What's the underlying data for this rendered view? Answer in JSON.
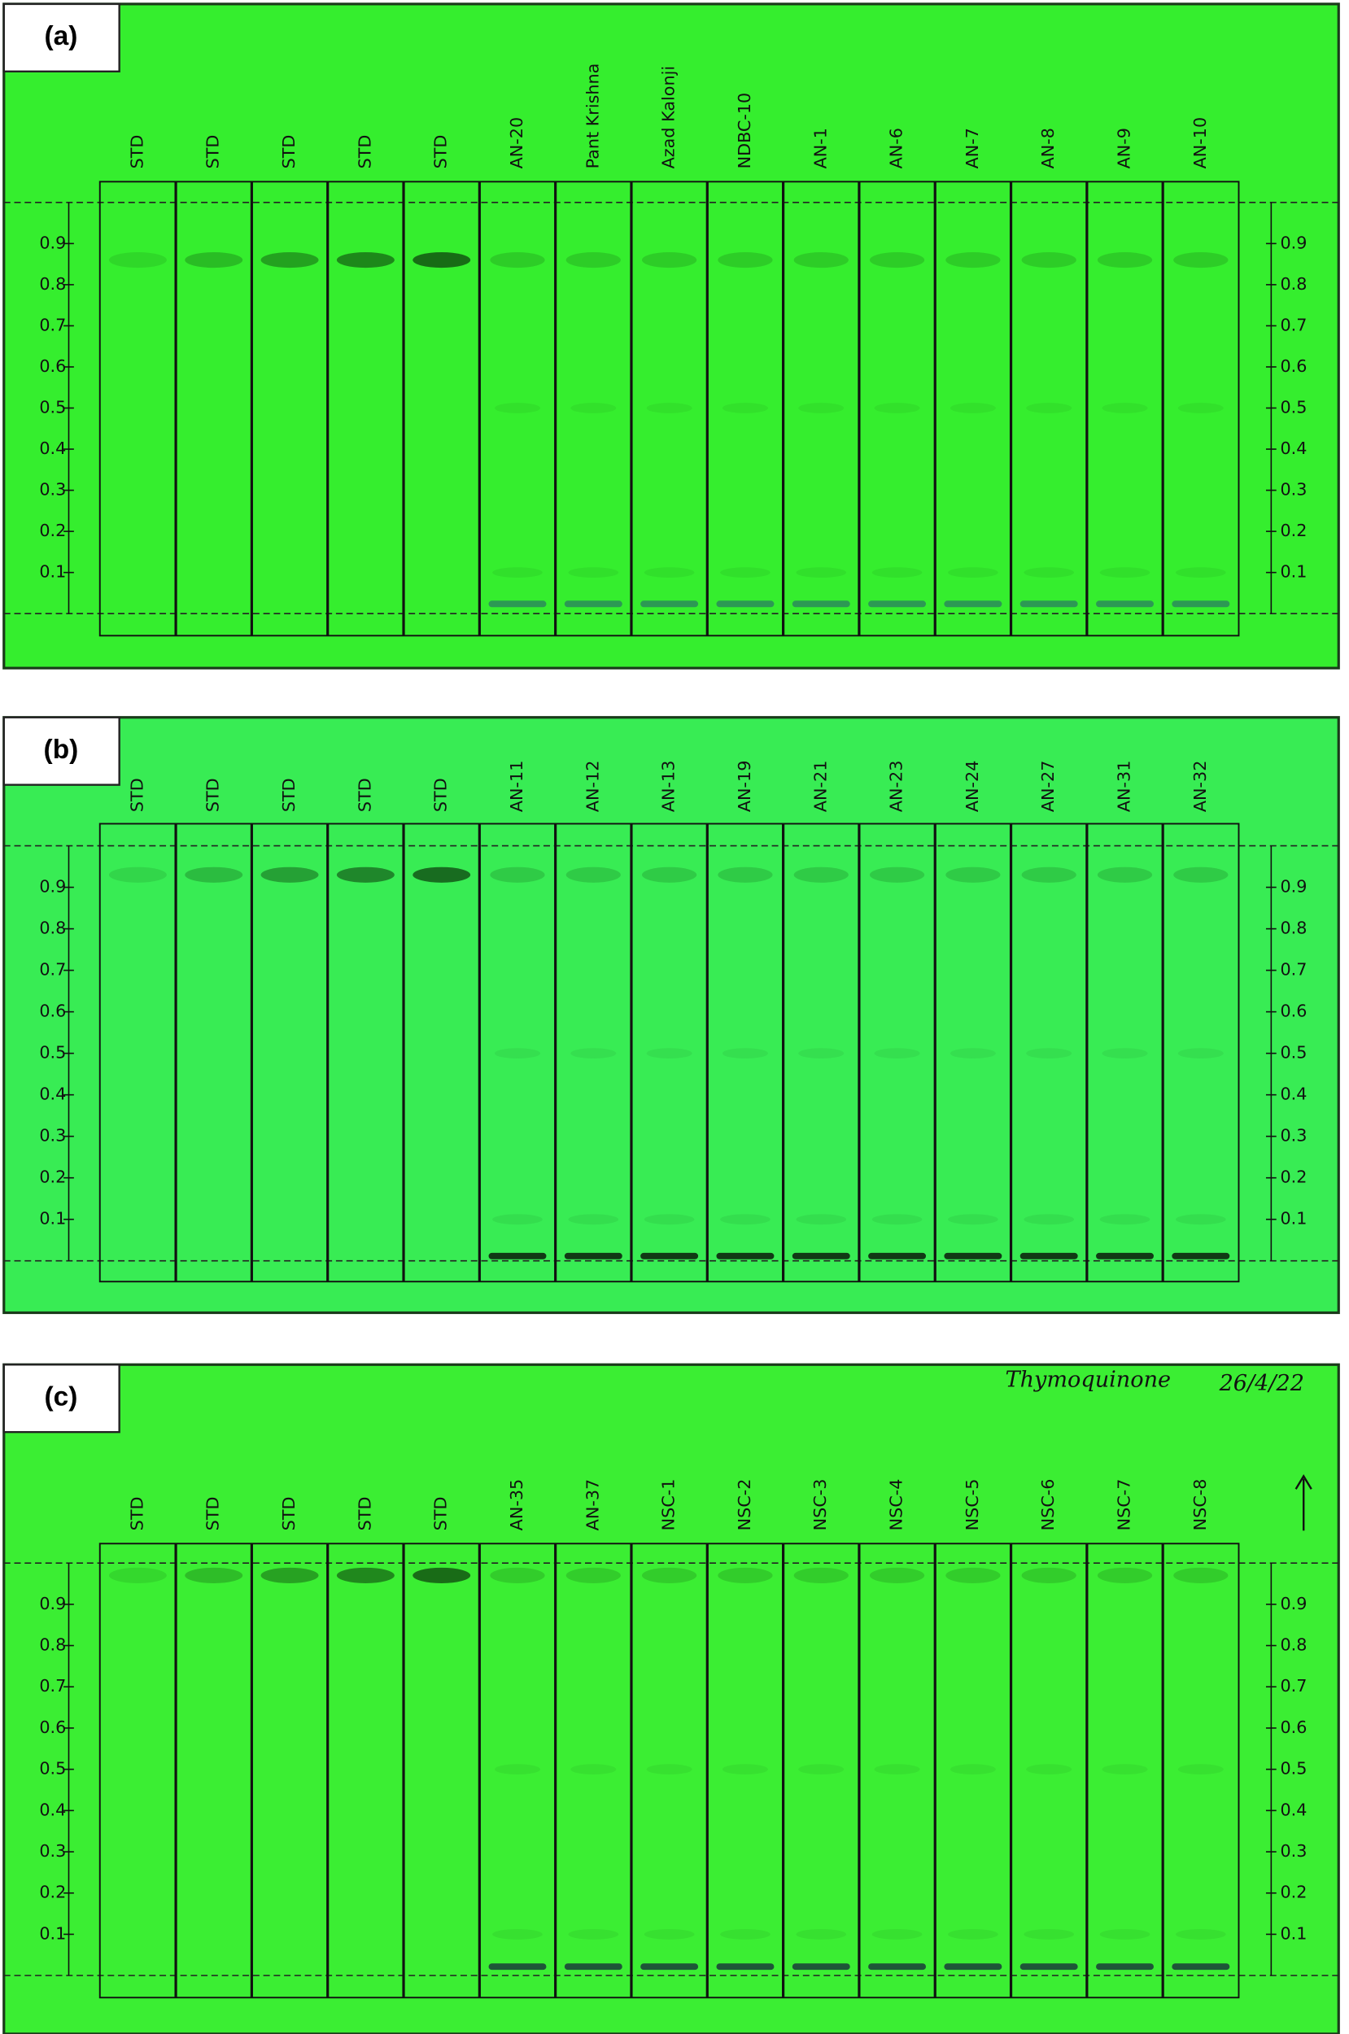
{
  "panels": [
    {
      "label": "(a)",
      "lanes": [
        "STD",
        "STD",
        "STD",
        "STD",
        "STD",
        "AN-20",
        "Pant Krishna",
        "Azad Kalonji",
        "NDBC-10",
        "AN-1",
        "AN-6",
        "AN-7",
        "AN-8",
        "AN-9",
        "AN-10"
      ],
      "ticks": [
        0.9,
        0.8,
        0.7,
        0.6,
        0.5,
        0.4,
        0.3,
        0.2,
        0.1
      ]
    },
    {
      "label": "(b)",
      "lanes": [
        "STD",
        "STD",
        "STD",
        "STD",
        "STD",
        "AN-11",
        "AN-12",
        "AN-13",
        "AN-19",
        "AN-21",
        "AN-23",
        "AN-24",
        "AN-27",
        "AN-31",
        "AN-32"
      ],
      "ticks": [
        0.9,
        0.8,
        0.7,
        0.6,
        0.5,
        0.4,
        0.3,
        0.2,
        0.1
      ]
    },
    {
      "label": "(c)",
      "lanes": [
        "STD",
        "STD",
        "STD",
        "STD",
        "STD",
        "AN-35",
        "AN-37",
        "NSC-1",
        "NSC-2",
        "NSC-3",
        "NSC-4",
        "NSC-5",
        "NSC-6",
        "NSC-7",
        "NSC-8"
      ],
      "ticks": [
        0.9,
        0.8,
        0.7,
        0.6,
        0.5,
        0.4,
        0.3,
        0.2,
        0.1
      ],
      "note": "Thymoquinone",
      "date": "26/4/22"
    }
  ]
}
